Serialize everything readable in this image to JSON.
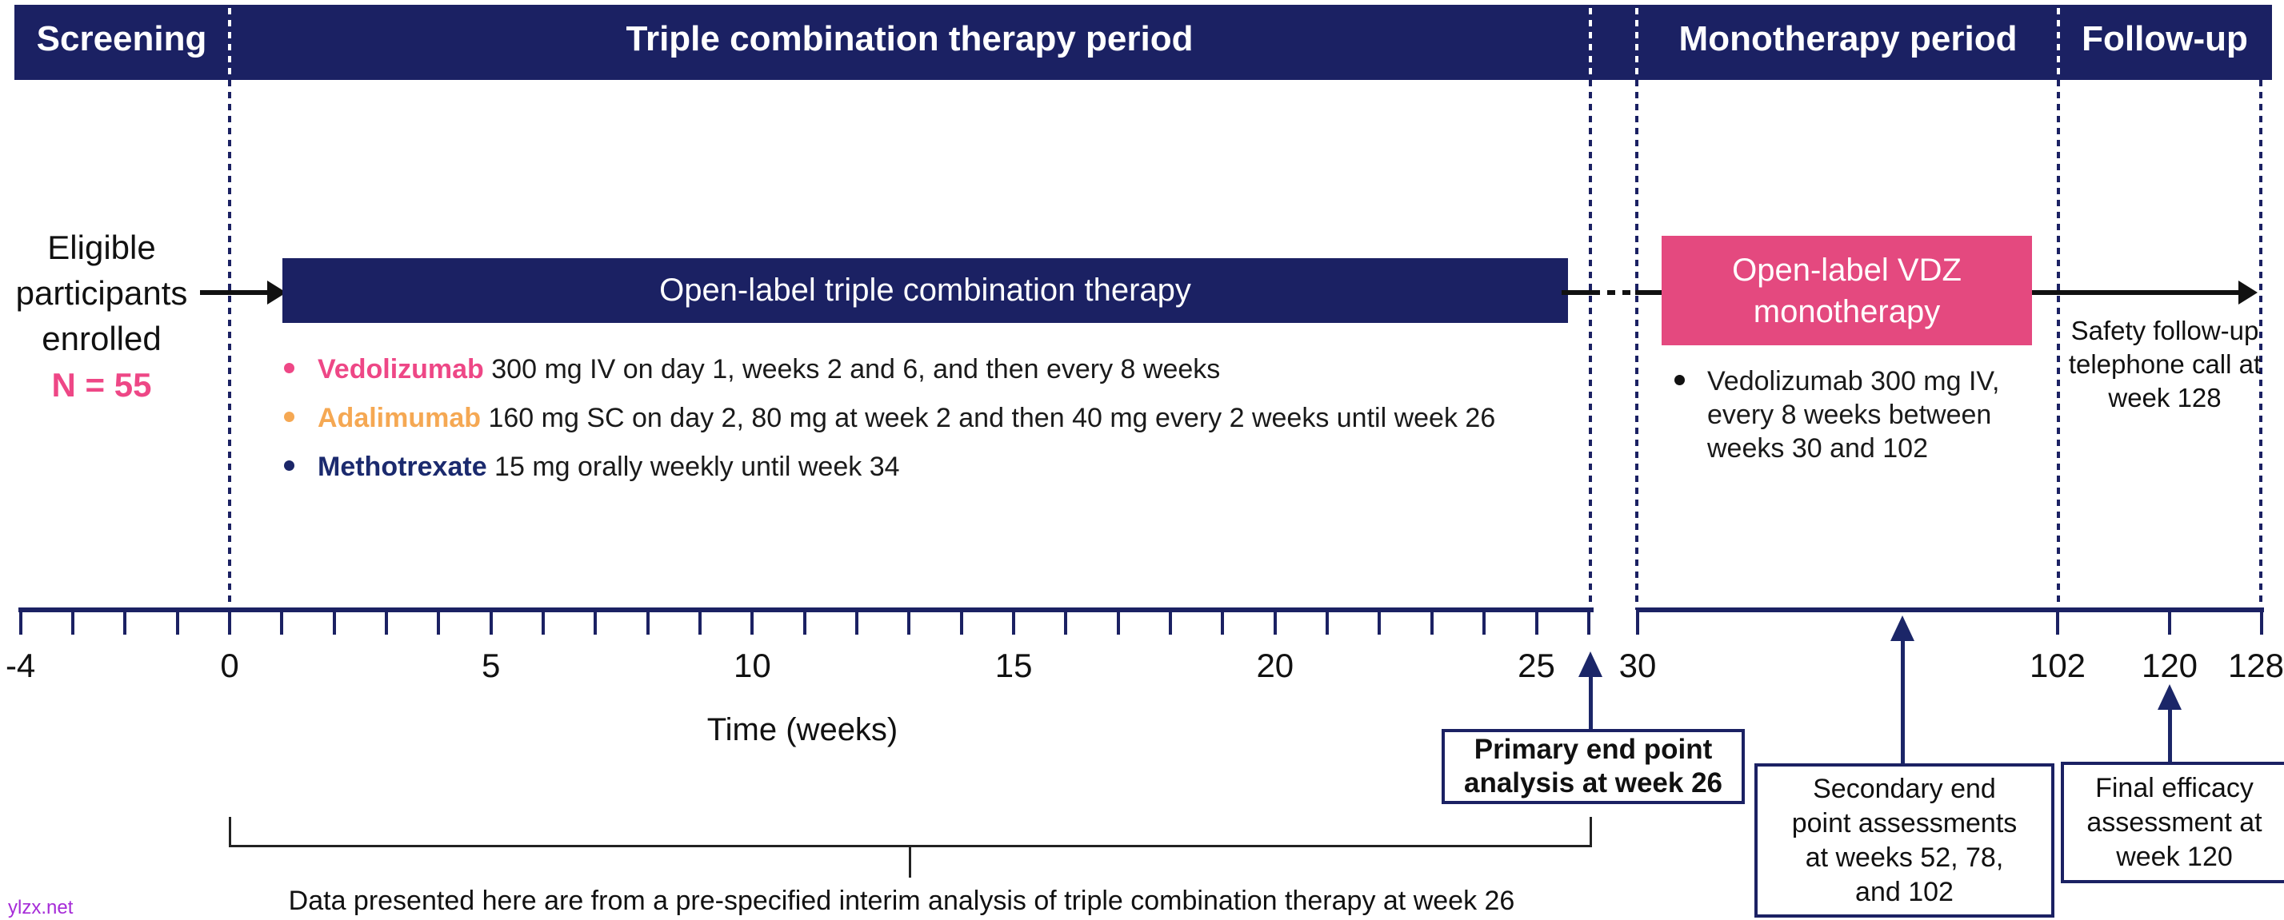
{
  "header": {
    "sections": [
      {
        "label": "Screening"
      },
      {
        "label": "Triple combination therapy period"
      },
      {
        "label": "Monotherapy period"
      },
      {
        "label": "Follow-up"
      }
    ]
  },
  "enrollment": {
    "text": "Eligible\nparticipants\nenrolled",
    "n_label": "N = 55"
  },
  "triple_therapy": {
    "box_label": "Open-label triple combination therapy",
    "bullets": [
      {
        "drug": "Vedolizumab",
        "details": " 300 mg IV on day 1, weeks 2 and 6, and then every 8 weeks",
        "color": "#EE4786"
      },
      {
        "drug": "Adalimumab",
        "details": " 160 mg SC on day 2, 80 mg at week 2 and then 40 mg every 2 weeks until week 26",
        "color": "#F5A853"
      },
      {
        "drug": "Methotrexate",
        "details": " 15 mg orally weekly until week 34",
        "color": "#1B2A6E"
      }
    ]
  },
  "monotherapy": {
    "box_label": "Open-label VDZ\nmonotherapy",
    "bullet": "Vedolizumab 300 mg IV,\nevery 8 weeks between\nweeks 30 and 102"
  },
  "follow_up": {
    "note": "Safety follow-up\ntelephone call at\nweek 128"
  },
  "timeline": {
    "axis_title": "Time (weeks)",
    "left_axis": {
      "start": -4,
      "end": 26,
      "tick_interval": 1,
      "labels": [
        -4,
        0,
        5,
        10,
        15,
        20,
        25
      ]
    },
    "right_axis": {
      "labels": [
        "30",
        "102",
        "120",
        "128"
      ]
    },
    "axis_break_between": [
      26,
      30
    ]
  },
  "annotations": {
    "primary": "Primary end point\nanalysis at week 26",
    "secondary": "Secondary end\npoint assessments\nat weeks 52, 78,\nand 102",
    "final": "Final efficacy\nassessment at\nweek 120",
    "caption": "Data presented here are from a pre-specified interim analysis of triple combination therapy at week 26"
  },
  "watermark": "ylzx.net",
  "colors": {
    "navy": "#1B2163",
    "pink_box": "#E4497F",
    "accent_pink": "#EE4786",
    "orange": "#F5A853",
    "drug_navy": "#1B2A6E",
    "watermark_purple": "#A62BD8"
  }
}
